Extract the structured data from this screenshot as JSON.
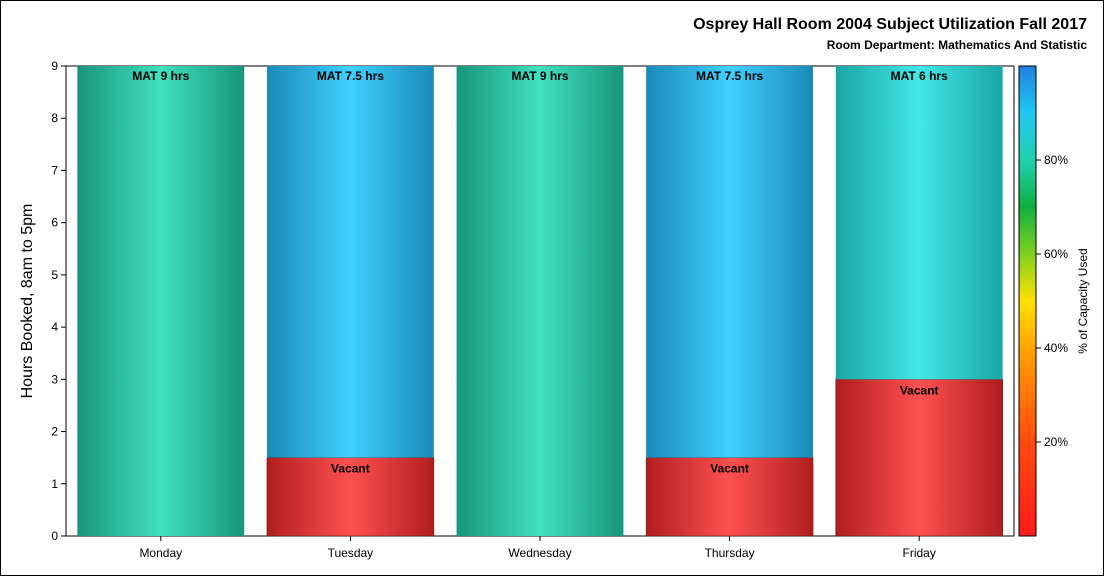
{
  "chart_data": {
    "type": "bar",
    "title": "Osprey Hall Room 2004 Subject Utilization Fall 2017",
    "subtitle": "Room Department:  Mathematics And Statistic",
    "xlabel": "",
    "ylabel": "Hours Booked, 8am to 5pm",
    "ylim": [
      0,
      9
    ],
    "yticks": [
      0,
      1,
      2,
      3,
      4,
      5,
      6,
      7,
      8,
      9
    ],
    "categories": [
      "Monday",
      "Tuesday",
      "Wednesday",
      "Thursday",
      "Friday"
    ],
    "stacked": true,
    "series": [
      {
        "name": "Vacant",
        "values": [
          0,
          1.5,
          0,
          1.5,
          3
        ],
        "labels": [
          "",
          "Vacant",
          "",
          "Vacant",
          "Vacant"
        ],
        "percent_used": [
          0,
          0,
          0,
          0,
          0
        ]
      },
      {
        "name": "MAT",
        "values": [
          9,
          7.5,
          9,
          7.5,
          6
        ],
        "labels": [
          "MAT 9 hrs",
          "MAT 7.5 hrs",
          "MAT 9 hrs",
          "MAT 7.5 hrs",
          "MAT 6 hrs"
        ],
        "percent_used": [
          100,
          83.3,
          100,
          83.3,
          66.7
        ]
      }
    ],
    "colorbar": {
      "title": "% of Capacity Used",
      "range": [
        0,
        100
      ],
      "ticks": [
        20,
        40,
        60,
        80
      ],
      "tick_labels": [
        "20%",
        "40%",
        "60%",
        "80%"
      ],
      "placement": "right"
    }
  },
  "colors": {
    "mat_full": "#40e0c0",
    "mat_full_edge": "#18957a",
    "mat_partial": "#40d0ff",
    "mat_partial_edge": "#1a8ab8",
    "mat_friday": "#40e8e8",
    "mat_friday_edge": "#1aa5a5",
    "vacant": "#ff5050",
    "vacant_edge": "#b01e1e"
  }
}
